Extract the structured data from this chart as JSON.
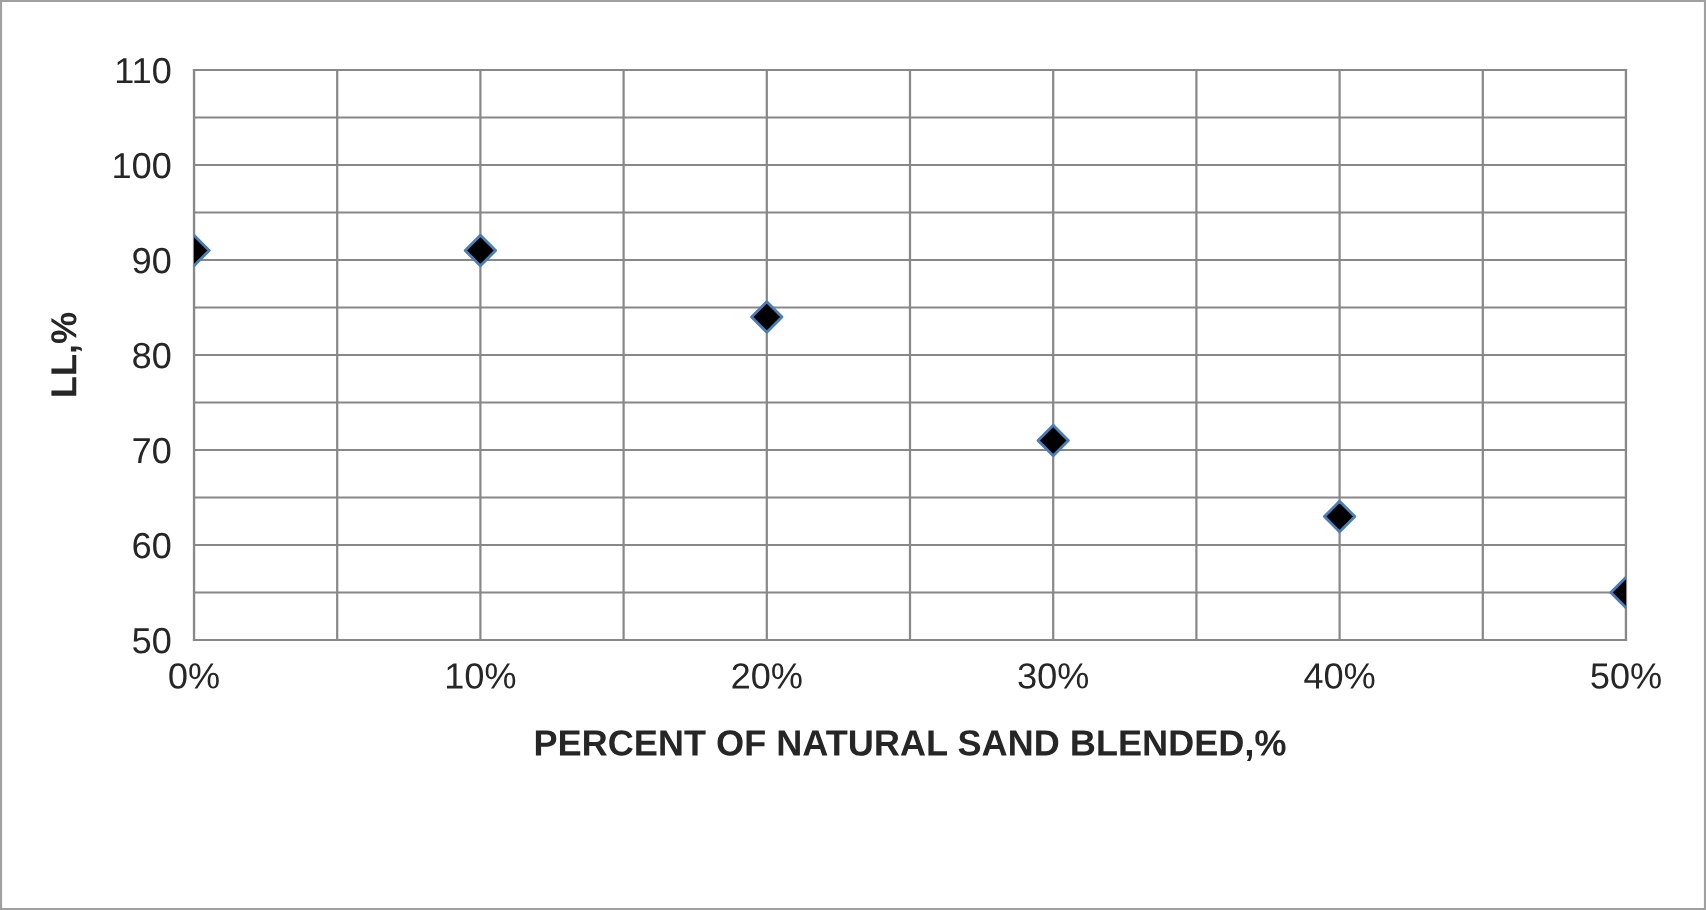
{
  "chart_data": {
    "type": "scatter",
    "xlabel": "PERCENT OF NATURAL SAND BLENDED,%",
    "ylabel": "LL,%",
    "x": [
      0,
      10,
      20,
      30,
      40,
      50
    ],
    "series": [
      {
        "color": "#000000",
        "values": [
          91,
          91,
          84,
          71,
          63,
          55
        ]
      }
    ],
    "marker": "diamond",
    "xlim": [
      0,
      50
    ],
    "xticks": [
      {
        "value": 0,
        "label": "0%"
      },
      {
        "value": 5,
        "label": null
      },
      {
        "value": 10,
        "label": "10%"
      },
      {
        "value": 15,
        "label": null
      },
      {
        "value": 20,
        "label": "20%"
      },
      {
        "value": 25,
        "label": null
      },
      {
        "value": 30,
        "label": "30%"
      },
      {
        "value": 35,
        "label": null
      },
      {
        "value": 40,
        "label": "40%"
      },
      {
        "value": 45,
        "label": null
      },
      {
        "value": 50,
        "label": "50%"
      }
    ],
    "ylim": [
      50,
      110
    ],
    "yticks": [
      50,
      {
        "value": 55,
        "label": null
      },
      60,
      {
        "value": 65,
        "label": null
      },
      70,
      {
        "value": 75,
        "label": null
      },
      80,
      {
        "value": 85,
        "label": null
      },
      90,
      {
        "value": 95,
        "label": null
      },
      100,
      {
        "value": 105,
        "label": null
      },
      110
    ],
    "grid": true
  }
}
